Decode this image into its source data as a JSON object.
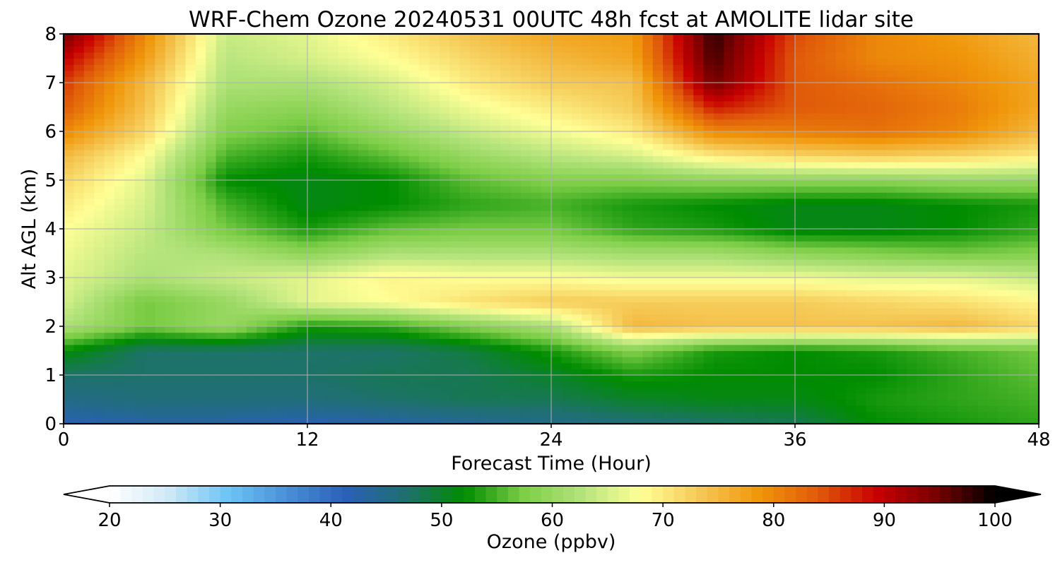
{
  "chart_data": {
    "type": "heatmap",
    "title": "WRF-Chem Ozone  20240531 00UTC 48h fcst at AMOLITE lidar site",
    "xlabel": "Forecast Time (Hour)",
    "ylabel": "Alt AGL (km)",
    "xlim": [
      0,
      48
    ],
    "ylim": [
      0,
      8
    ],
    "x_ticks": [
      0,
      12,
      24,
      36,
      48
    ],
    "y_ticks": [
      0,
      1,
      2,
      3,
      4,
      5,
      6,
      7,
      8
    ],
    "grid": true,
    "colorbar": {
      "label": "Ozone  (ppbv)",
      "min": 20,
      "max": 100,
      "ticks": [
        20,
        30,
        40,
        50,
        60,
        70,
        80,
        90,
        100
      ],
      "extend": "both",
      "orientation": "horizontal"
    },
    "x": [
      0,
      4,
      8,
      12,
      16,
      20,
      24,
      28,
      32,
      36,
      40,
      44,
      48
    ],
    "y": [
      0,
      0.5,
      1,
      1.5,
      2,
      2.5,
      3,
      3.5,
      4,
      4.5,
      5,
      5.5,
      6,
      6.5,
      7,
      7.5,
      8
    ],
    "z": [
      [
        42,
        43,
        43,
        42,
        43,
        44,
        45,
        46,
        47,
        48,
        52,
        53,
        54
      ],
      [
        45,
        46,
        46,
        46,
        47,
        48,
        48,
        50,
        51,
        51,
        53,
        54,
        55
      ],
      [
        47,
        47,
        47,
        47,
        48,
        48,
        50,
        53,
        52,
        52,
        52,
        54,
        56
      ],
      [
        52,
        47,
        47,
        47,
        47,
        49,
        53,
        58,
        53,
        52,
        53,
        55,
        57
      ],
      [
        62,
        57,
        60,
        53,
        54,
        58,
        62,
        75,
        74,
        74,
        74,
        75,
        72
      ],
      [
        65,
        57,
        60,
        66,
        68,
        71,
        73,
        73,
        73,
        73,
        72,
        71,
        69
      ],
      [
        66,
        62,
        64,
        66,
        69,
        68,
        68,
        67,
        67,
        67,
        66,
        66,
        64
      ],
      [
        67,
        63,
        62,
        59,
        62,
        62,
        62,
        61,
        61,
        59,
        58,
        57,
        58
      ],
      [
        68,
        64,
        57,
        53,
        56,
        57,
        57,
        54,
        53,
        51,
        51,
        52,
        54
      ],
      [
        70,
        65,
        55,
        51,
        52,
        54,
        55,
        53,
        52,
        51,
        51,
        52,
        53
      ],
      [
        72,
        66,
        52,
        51,
        52,
        56,
        58,
        58,
        59,
        59,
        59,
        60,
        60
      ],
      [
        75,
        68,
        55,
        53,
        56,
        60,
        63,
        65,
        70,
        72,
        73,
        72,
        70
      ],
      [
        80,
        72,
        58,
        56,
        60,
        64,
        67,
        70,
        80,
        81,
        82,
        80,
        75
      ],
      [
        84,
        74,
        60,
        59,
        63,
        67,
        70,
        73,
        88,
        84,
        83,
        81,
        77
      ],
      [
        86,
        75,
        62,
        62,
        65,
        70,
        73,
        74,
        95,
        84,
        82,
        80,
        77
      ],
      [
        90,
        78,
        63,
        65,
        68,
        72,
        75,
        77,
        97,
        84,
        80,
        79,
        76
      ],
      [
        95,
        80,
        64,
        66,
        70,
        74,
        77,
        78,
        98,
        85,
        80,
        78,
        75
      ]
    ],
    "colormap": [
      "#ffffff",
      "#cfe9f7",
      "#6cc4f4",
      "#4a90d8",
      "#2a5fb8",
      "#1f7070",
      "#008c00",
      "#7ccd46",
      "#b4e37c",
      "#ffff96",
      "#f5c855",
      "#f0960a",
      "#e05a0a",
      "#c80000",
      "#780000",
      "#000000"
    ]
  }
}
